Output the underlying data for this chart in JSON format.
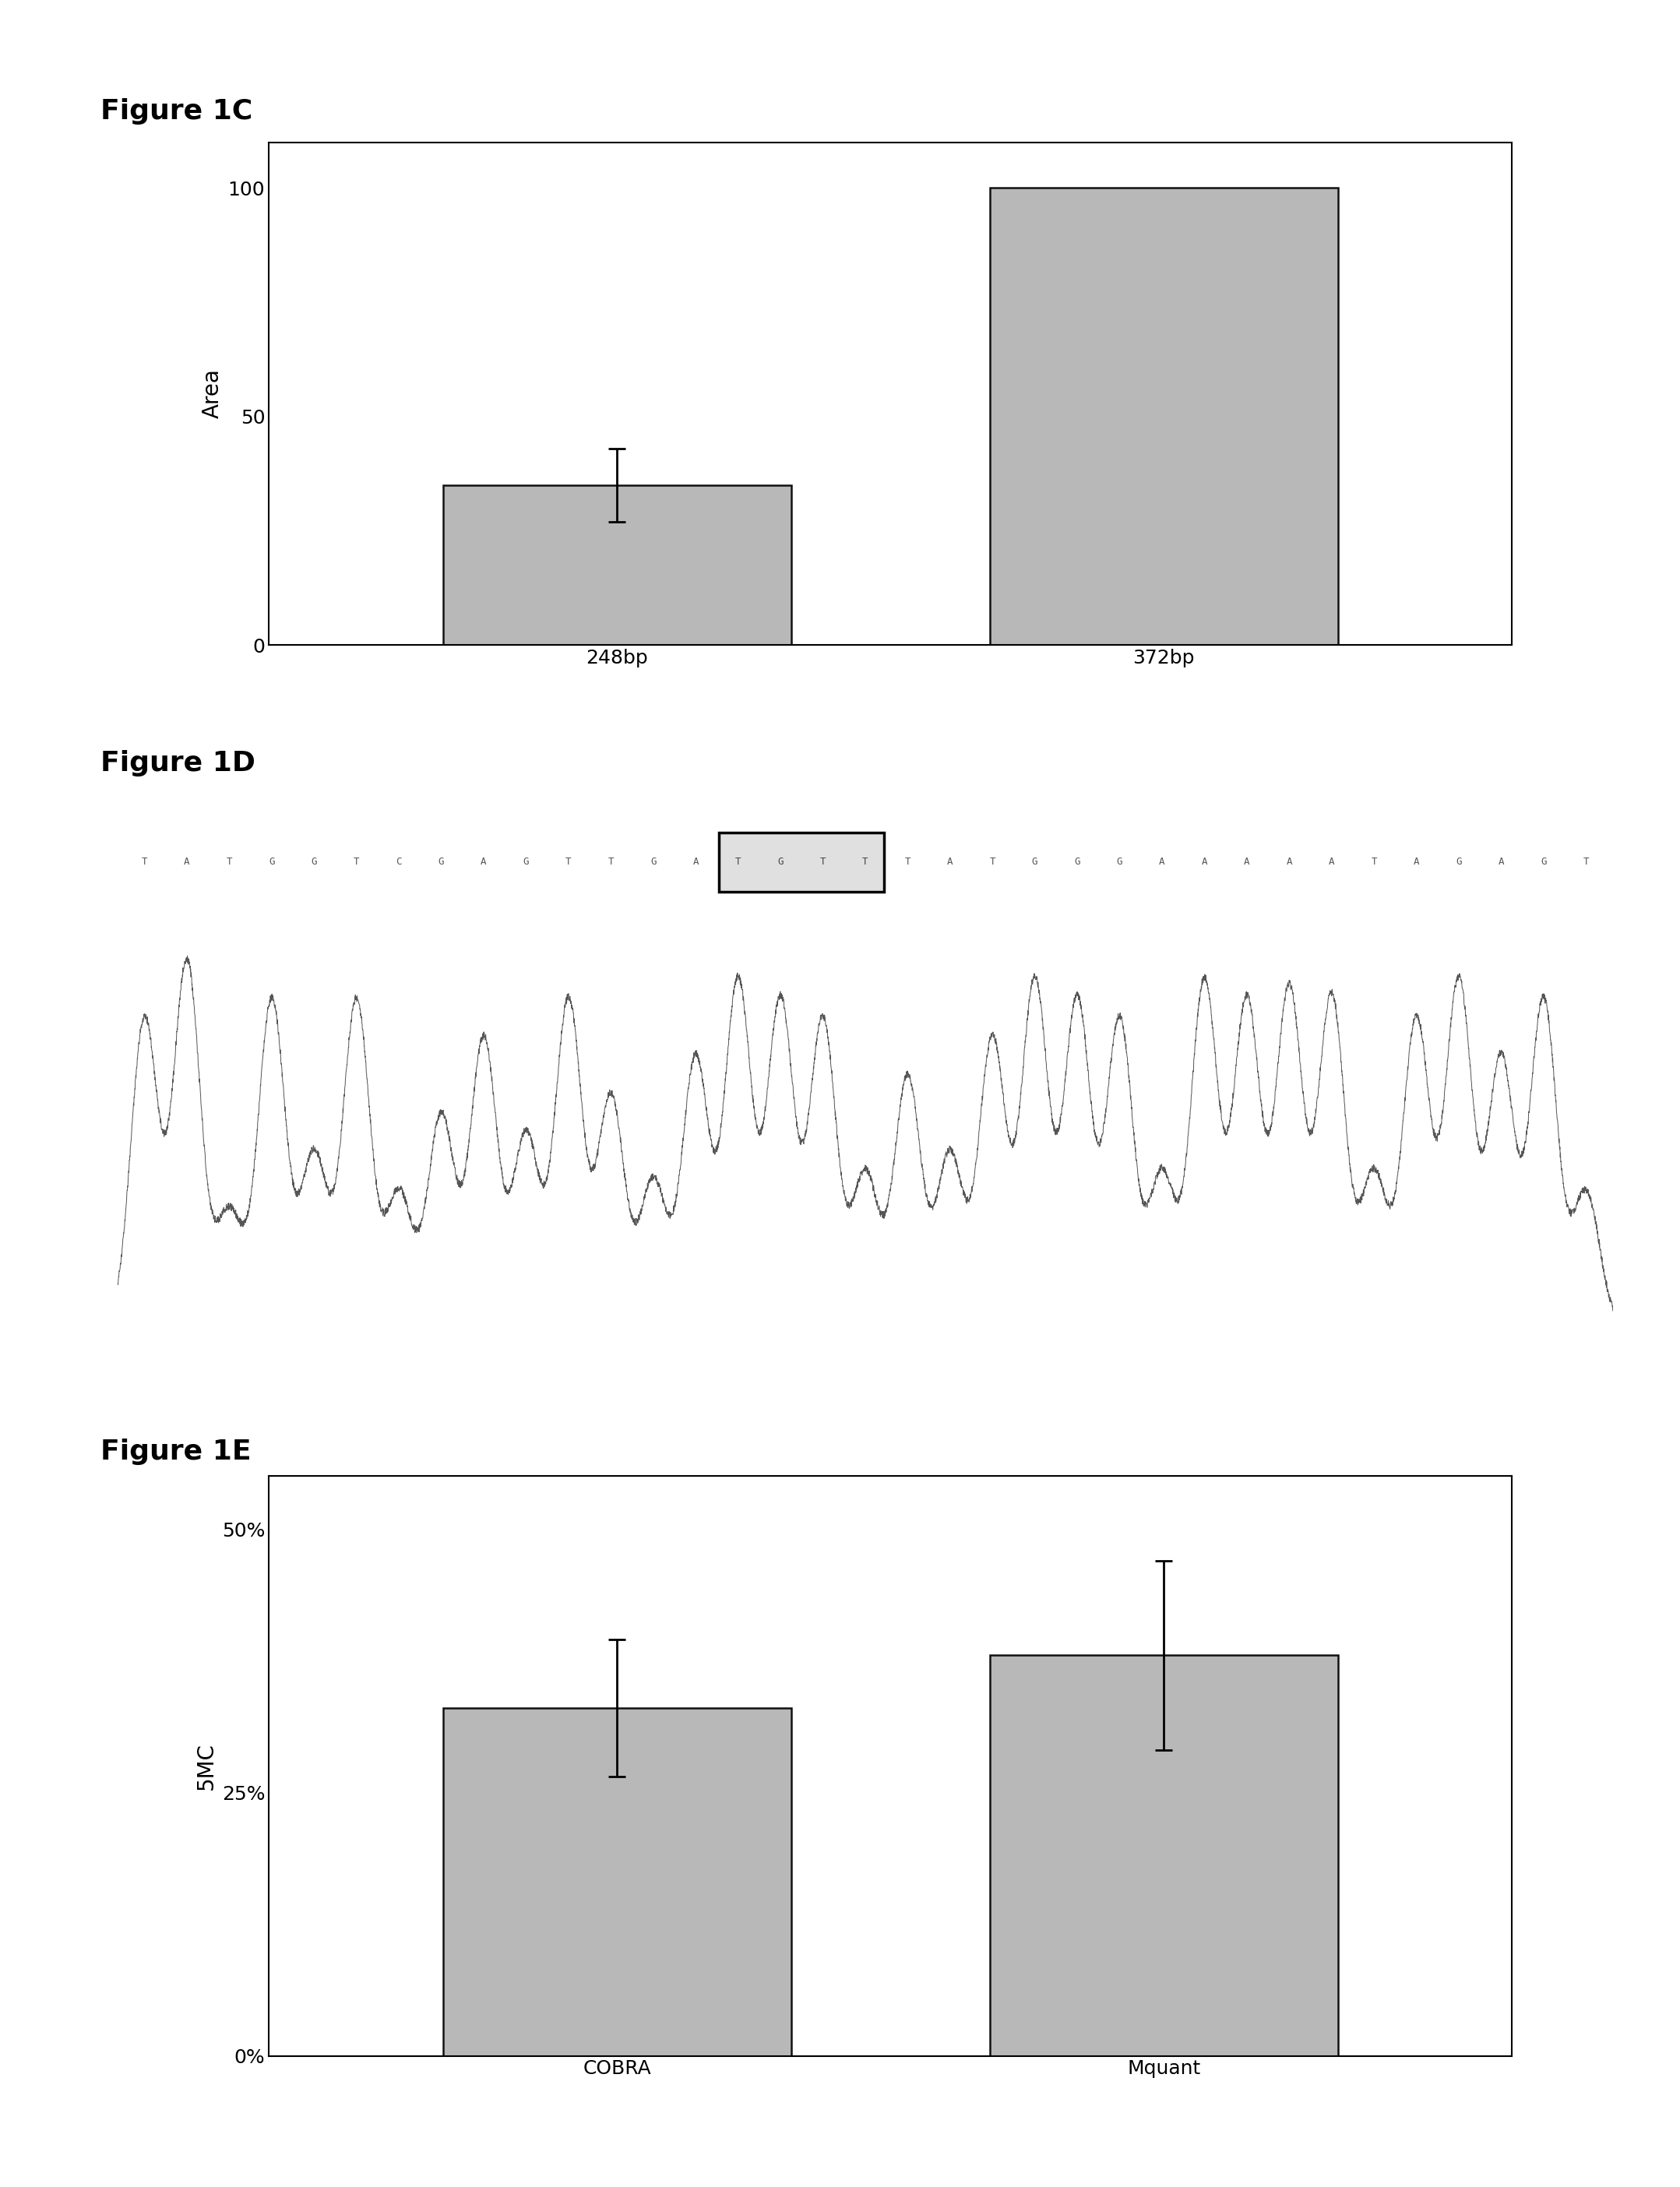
{
  "fig1c_title": "Figure 1C",
  "fig1c_categories": [
    "248bp",
    "372bp"
  ],
  "fig1c_values": [
    35,
    100
  ],
  "fig1c_errors": [
    8,
    0
  ],
  "fig1c_ylabel": "Area",
  "fig1c_ylim": [
    0,
    110
  ],
  "fig1c_yticks": [
    0,
    50,
    100
  ],
  "fig1c_bar_color": "#b8b8b8",
  "fig1c_bar_edgecolor": "#111111",
  "fig1d_title": "Figure 1D",
  "fig1d_display_seq": [
    "T",
    "A",
    "T",
    "G",
    "G",
    "T",
    "C",
    "G",
    "A",
    "G",
    "T",
    "T",
    "G",
    "A",
    "T",
    "G",
    "T",
    "T",
    "T",
    "A",
    "T",
    "G",
    "G",
    "G",
    "A",
    "A",
    "A",
    "A",
    "A",
    "T",
    "A",
    "G",
    "A",
    "G",
    "T"
  ],
  "fig1d_boxed_indices": [
    14,
    15,
    16,
    17
  ],
  "fig1e_title": "Figure 1E",
  "fig1e_categories": [
    "COBRA",
    "Mquant"
  ],
  "fig1e_values": [
    0.33,
    0.38
  ],
  "fig1e_errors": [
    0.065,
    0.09
  ],
  "fig1e_ylabel": "5MC",
  "fig1e_ylim": [
    0,
    0.55
  ],
  "fig1e_yticks": [
    0,
    0.25,
    0.5
  ],
  "fig1e_yticklabels": [
    "0%",
    "25%",
    "50%"
  ],
  "fig1e_bar_color": "#b8b8b8",
  "fig1e_bar_edgecolor": "#111111",
  "background_color": "#ffffff",
  "title_fontsize": 26,
  "tick_fontsize": 18,
  "label_fontsize": 20
}
